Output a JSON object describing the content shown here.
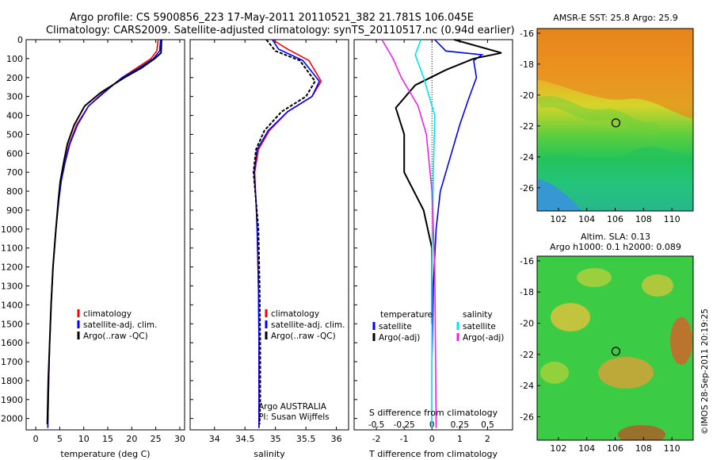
{
  "header": {
    "title_line1": "Argo profile: CS 5900856_223 17-May-2011 20110521_382 21.781S 106.045E",
    "title_line2": "Climatology: CARS2009. Satellite-adjusted climatology: synTS_20110517.nc (0.94d earlier)"
  },
  "colors": {
    "climatology": "#ff0000",
    "satellite": "#0000ff",
    "argo": "#000000",
    "s_satellite": "#00e5ee",
    "s_argo": "#ee22ee"
  },
  "chart_data": [
    {
      "type": "line",
      "name": "temperature-panel",
      "xlabel": "temperature (deg C)",
      "ylabel": "",
      "xlim": [
        -2,
        31
      ],
      "ylim": [
        0,
        2060
      ],
      "y_reversed": true,
      "xticks": [
        0,
        5,
        10,
        15,
        20,
        25,
        30
      ],
      "yticks": [
        0,
        100,
        200,
        300,
        400,
        500,
        600,
        700,
        800,
        900,
        1000,
        1100,
        1200,
        1300,
        1400,
        1500,
        1600,
        1700,
        1800,
        1900,
        2000
      ],
      "legend": [
        "climatology",
        "satellite-adj. clim.",
        "Argo(..raw -QC)"
      ],
      "series": [
        {
          "name": "climatology",
          "color": "#ff0000",
          "x": [
            25.5,
            25.2,
            24,
            21,
            18,
            14,
            11,
            8.5,
            7,
            6,
            5.2,
            4.8,
            4.2,
            3.6,
            3.2,
            2.9,
            2.7,
            2.5
          ],
          "y": [
            0,
            60,
            100,
            150,
            200,
            280,
            350,
            450,
            550,
            650,
            750,
            850,
            1000,
            1200,
            1400,
            1600,
            1800,
            2050
          ]
        },
        {
          "name": "satellite-adj. clim.",
          "color": "#0000ff",
          "x": [
            26,
            25.8,
            24.5,
            21.5,
            18,
            14.2,
            11,
            8.7,
            7.1,
            6.1,
            5.3,
            4.8,
            4.2,
            3.6,
            3.2,
            2.9,
            2.7,
            2.5
          ],
          "y": [
            0,
            60,
            100,
            150,
            200,
            280,
            350,
            450,
            550,
            650,
            750,
            850,
            1000,
            1200,
            1400,
            1600,
            1800,
            2050
          ]
        },
        {
          "name": "Argo(..raw -QC)",
          "color": "#000000",
          "x": [
            26.2,
            26.1,
            24.8,
            22,
            18.5,
            13.5,
            10.2,
            8,
            6.6,
            5.8,
            5.1,
            4.7,
            4.2,
            3.6,
            3.2,
            2.9,
            2.6,
            2.4
          ],
          "y": [
            0,
            70,
            100,
            150,
            200,
            280,
            350,
            450,
            550,
            650,
            750,
            850,
            1000,
            1200,
            1400,
            1600,
            1800,
            2030
          ]
        }
      ]
    },
    {
      "type": "line",
      "name": "salinity-panel",
      "xlabel": "salinity",
      "xlim": [
        33.6,
        36.2
      ],
      "ylim": [
        0,
        2060
      ],
      "y_reversed": true,
      "xticks": [
        34,
        34.5,
        35,
        35.5,
        36
      ],
      "legend": [
        "climatology",
        "satellite-adj. clim.",
        "Argo(..raw -QC)"
      ],
      "annotation": [
        "Argo AUSTRALIA",
        "PI: Susan Wijffels"
      ],
      "series": [
        {
          "name": "climatology",
          "color": "#ff0000",
          "x": [
            34.95,
            35.2,
            35.55,
            35.75,
            35.6,
            35.2,
            34.9,
            34.72,
            34.66,
            34.68,
            34.7,
            34.72,
            34.73,
            34.73,
            34.73
          ],
          "y": [
            0,
            50,
            110,
            220,
            300,
            380,
            480,
            580,
            700,
            850,
            1000,
            1300,
            1600,
            1900,
            2050
          ]
        },
        {
          "name": "satellite-adj. clim.",
          "color": "#0000ff",
          "x": [
            34.95,
            35.05,
            35.45,
            35.72,
            35.6,
            35.2,
            34.88,
            34.7,
            34.65,
            34.68,
            34.7,
            34.72,
            34.73,
            34.73,
            34.73
          ],
          "y": [
            0,
            50,
            110,
            220,
            300,
            380,
            480,
            580,
            700,
            850,
            1000,
            1300,
            1600,
            1900,
            2050
          ]
        },
        {
          "name": "Argo(..raw -QC)",
          "color": "#000000",
          "x": [
            34.85,
            35.0,
            35.4,
            35.65,
            35.5,
            35.1,
            34.82,
            34.68,
            34.64,
            34.68,
            34.72,
            34.74,
            34.75,
            34.75,
            34.74
          ],
          "y": [
            0,
            60,
            110,
            220,
            300,
            380,
            480,
            580,
            700,
            850,
            1000,
            1300,
            1600,
            1900,
            2030
          ]
        }
      ]
    },
    {
      "type": "line",
      "name": "difference-panel",
      "xlabel": "T difference from climatology",
      "xlabel_top": "S difference from climatology",
      "xlim": [
        -2.8,
        2.9
      ],
      "ylim": [
        0,
        2060
      ],
      "y_reversed": true,
      "xticks": [
        -2,
        -1,
        0,
        1,
        2
      ],
      "xticks_s": [
        "-0.5",
        "-0.25",
        "0",
        "0.25",
        "0.5"
      ],
      "legend_titles": [
        "temperature",
        "salinity"
      ],
      "legend": [
        "satellite",
        "Argo(-adj)",
        "satellite",
        "Argo(-adj)"
      ],
      "series": [
        {
          "name": "T satellite",
          "color": "#0000ff",
          "x": [
            0.1,
            0.5,
            1.8,
            1.5,
            1.6,
            1.3,
            1.0,
            0.7,
            0.3,
            0.15,
            0.05,
            0,
            0
          ],
          "y": [
            0,
            60,
            80,
            110,
            200,
            320,
            450,
            600,
            800,
            1000,
            1300,
            1700,
            2050
          ]
        },
        {
          "name": "T Argo(-adj)",
          "color": "#000000",
          "x": [
            0.8,
            2.5,
            1.5,
            0.5,
            -0.6,
            -1.3,
            -1.0,
            -1.0,
            -0.3,
            0,
            0
          ],
          "y": [
            0,
            70,
            100,
            160,
            240,
            360,
            500,
            700,
            900,
            1100,
            1500
          ]
        },
        {
          "name": "S satellite",
          "color": "#00e5ee",
          "x": [
            -0.4,
            -0.6,
            -0.3,
            0.1,
            0.05,
            0,
            0
          ],
          "y": [
            0,
            80,
            200,
            400,
            700,
            1200,
            2050
          ]
        },
        {
          "name": "S Argo(-adj)",
          "color": "#ee22ee",
          "x": [
            -1.8,
            -1.4,
            -1.1,
            -0.5,
            -0.2,
            0,
            0.1,
            0.15
          ],
          "y": [
            0,
            100,
            200,
            350,
            500,
            800,
            1200,
            2050
          ]
        }
      ]
    },
    {
      "type": "heatmap",
      "name": "sst-map",
      "title": "AMSR-E SST: 25.8 Argo: 25.9",
      "xlim": [
        100.5,
        111.5
      ],
      "ylim": [
        -27.5,
        -15.7
      ],
      "xticks": [
        102,
        104,
        106,
        108,
        110
      ],
      "yticks": [
        -16,
        -18,
        -20,
        -22,
        -24,
        -26
      ],
      "marker": {
        "x": 106.05,
        "y": -21.8
      }
    },
    {
      "type": "heatmap",
      "name": "sla-map",
      "title_line1": "Altim. SLA: 0.13",
      "title_line2": "Argo h1000: 0.1 h2000: 0.089",
      "xlim": [
        100.5,
        111.5
      ],
      "ylim": [
        -27.5,
        -15.7
      ],
      "xticks": [
        102,
        104,
        106,
        108,
        110
      ],
      "yticks": [
        -16,
        -18,
        -20,
        -22,
        -24,
        -26
      ],
      "marker": {
        "x": 106.05,
        "y": -21.8
      }
    }
  ],
  "footer": {
    "credit": "©IMOS 28-Sep-2011 20:19:25"
  }
}
